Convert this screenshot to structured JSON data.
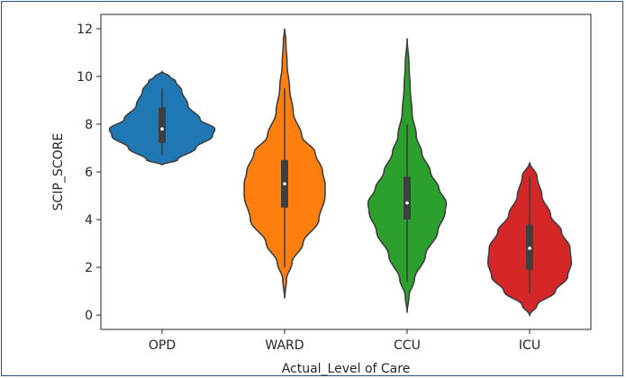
{
  "chart_data": {
    "type": "violin",
    "title": "",
    "xlabel": "Actual_Level of Care",
    "ylabel": "SCIP_SCORE",
    "categories": [
      "OPD",
      "WARD",
      "CCU",
      "ICU"
    ],
    "ylim": [
      -0.6,
      12.6
    ],
    "yticks": [
      0,
      2,
      4,
      6,
      8,
      10,
      12
    ],
    "grid": false,
    "colors": [
      "#1f77b4",
      "#ff7f0e",
      "#2ca02c",
      "#d62728"
    ],
    "violins": [
      {
        "category": "OPD",
        "min": 6.3,
        "max": 10.2,
        "q1": 7.2,
        "median": 7.8,
        "q3": 8.7,
        "whisker_low": 6.7,
        "whisker_high": 9.5,
        "profile": [
          [
            6.3,
            0.0
          ],
          [
            6.5,
            0.25
          ],
          [
            7.0,
            0.55
          ],
          [
            7.5,
            0.82
          ],
          [
            7.8,
            0.86
          ],
          [
            8.2,
            0.62
          ],
          [
            8.8,
            0.42
          ],
          [
            9.4,
            0.32
          ],
          [
            9.8,
            0.22
          ],
          [
            10.0,
            0.12
          ],
          [
            10.2,
            0.0
          ]
        ]
      },
      {
        "category": "WARD",
        "min": 0.7,
        "max": 12.0,
        "q1": 4.5,
        "median": 5.5,
        "q3": 6.5,
        "whisker_low": 2.0,
        "whisker_high": 9.5,
        "profile": [
          [
            0.7,
            0.0
          ],
          [
            1.5,
            0.03
          ],
          [
            2.2,
            0.12
          ],
          [
            3.0,
            0.3
          ],
          [
            4.0,
            0.56
          ],
          [
            5.0,
            0.66
          ],
          [
            5.5,
            0.66
          ],
          [
            6.0,
            0.62
          ],
          [
            6.8,
            0.5
          ],
          [
            7.5,
            0.28
          ],
          [
            8.5,
            0.14
          ],
          [
            9.5,
            0.08
          ],
          [
            10.5,
            0.04
          ],
          [
            11.5,
            0.02
          ],
          [
            12.0,
            0.0
          ]
        ]
      },
      {
        "category": "CCU",
        "min": 0.1,
        "max": 11.6,
        "q1": 4.0,
        "median": 4.7,
        "q3": 5.8,
        "whisker_low": 1.4,
        "whisker_high": 8.0,
        "profile": [
          [
            0.1,
            0.0
          ],
          [
            0.8,
            0.03
          ],
          [
            1.5,
            0.12
          ],
          [
            2.5,
            0.3
          ],
          [
            3.5,
            0.5
          ],
          [
            4.3,
            0.62
          ],
          [
            4.7,
            0.64
          ],
          [
            5.3,
            0.52
          ],
          [
            6.0,
            0.38
          ],
          [
            6.8,
            0.24
          ],
          [
            7.5,
            0.15
          ],
          [
            8.5,
            0.08
          ],
          [
            9.5,
            0.05
          ],
          [
            10.5,
            0.03
          ],
          [
            11.6,
            0.0
          ]
        ]
      },
      {
        "category": "ICU",
        "min": 0.0,
        "max": 6.4,
        "q1": 1.9,
        "median": 2.8,
        "q3": 3.8,
        "whisker_low": 0.9,
        "whisker_high": 5.8,
        "profile": [
          [
            0.0,
            0.0
          ],
          [
            0.4,
            0.12
          ],
          [
            1.0,
            0.42
          ],
          [
            1.6,
            0.62
          ],
          [
            2.2,
            0.68
          ],
          [
            2.8,
            0.66
          ],
          [
            3.5,
            0.52
          ],
          [
            4.2,
            0.34
          ],
          [
            5.0,
            0.2
          ],
          [
            5.8,
            0.12
          ],
          [
            6.4,
            0.0
          ]
        ]
      }
    ]
  }
}
